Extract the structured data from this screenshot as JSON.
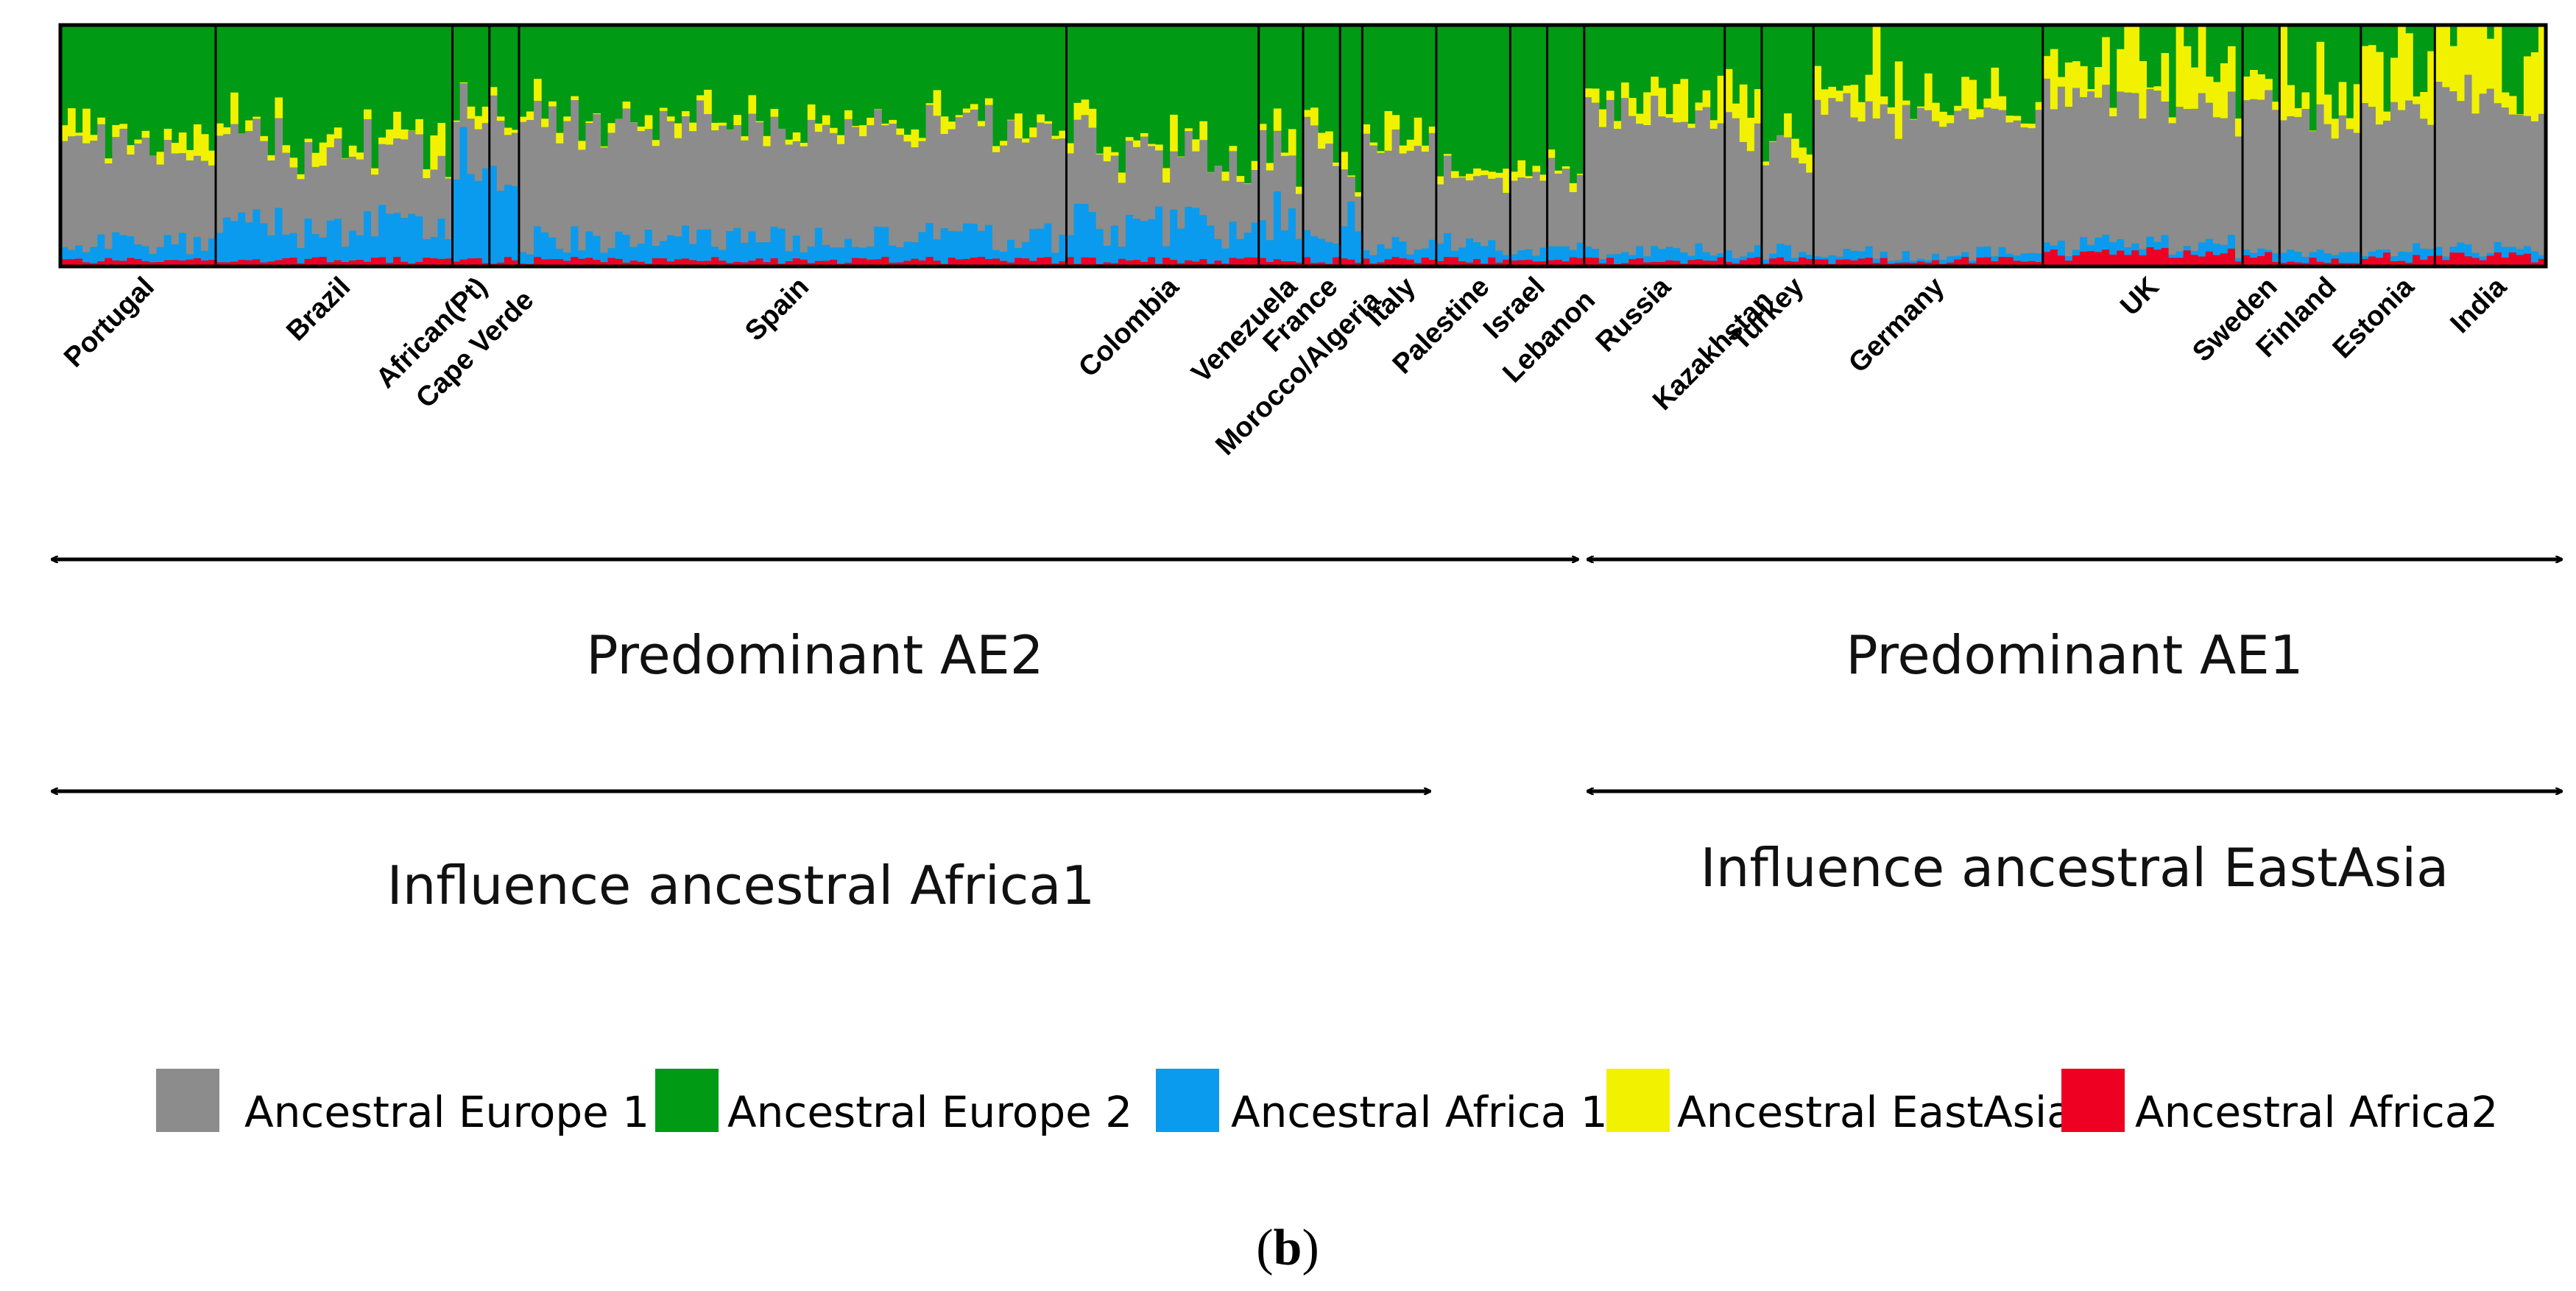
{
  "chart_data": {
    "type": "stacked-bar",
    "title": "",
    "xlabel": "",
    "ylabel": "",
    "ylim": [
      0,
      1
    ],
    "grid": false,
    "legend_position": "bottom",
    "components": [
      {
        "key": "ae1",
        "name": "Ancestral Europe 1",
        "color": "#8c8c8c"
      },
      {
        "key": "ae2",
        "name": "Ancestral Europe 2",
        "color": "#009a14"
      },
      {
        "key": "af1",
        "name": "Ancestral Africa 1",
        "color": "#0a9bee"
      },
      {
        "key": "ea",
        "name": "Ancestral EastAsia",
        "color": "#f2f200"
      },
      {
        "key": "af2",
        "name": "Ancestral Africa2",
        "color": "#ee0022"
      }
    ],
    "populations": [
      {
        "name": "Portugal",
        "n": 21,
        "af2": 0.02,
        "af1": 0.07,
        "ae1": 0.39,
        "ea": 0.03,
        "label_row": 0
      },
      {
        "name": "Brazil",
        "n": 32,
        "af2": 0.02,
        "af1": 0.13,
        "ae1": 0.33,
        "ea": 0.03,
        "label_row": 0
      },
      {
        "name": "African(Pt)",
        "n": 5,
        "af2": 0.02,
        "af1": 0.35,
        "ae1": 0.21,
        "ea": 0.04,
        "label_row": 0
      },
      {
        "name": "Cape Verde",
        "n": 4,
        "af2": 0.02,
        "af1": 0.24,
        "ae1": 0.22,
        "ea": 0.02,
        "label_row": 1
      },
      {
        "name": "Spain",
        "n": 74,
        "af2": 0.02,
        "af1": 0.09,
        "ae1": 0.46,
        "ea": 0.02,
        "label_row": 0
      },
      {
        "name": "Colombia",
        "n": 26,
        "af2": 0.02,
        "af1": 0.15,
        "ae1": 0.29,
        "ea": 0.04,
        "label_row": 0
      },
      {
        "name": "Venezuela",
        "n": 6,
        "af2": 0.02,
        "af1": 0.18,
        "ae1": 0.28,
        "ea": 0.03,
        "label_row": 0
      },
      {
        "name": "France",
        "n": 5,
        "af2": 0.02,
        "af1": 0.08,
        "ae1": 0.38,
        "ea": 0.04,
        "label_row": 0
      },
      {
        "name": "Morocco/Algeria",
        "n": 3,
        "af2": 0.02,
        "af1": 0.28,
        "ae1": 0.17,
        "ea": 0.02,
        "label_row": 1
      },
      {
        "name": "Italy",
        "n": 10,
        "af2": 0.02,
        "af1": 0.05,
        "ae1": 0.43,
        "ea": 0.03,
        "label_row": 0
      },
      {
        "name": "Palestine",
        "n": 10,
        "af2": 0.02,
        "af1": 0.06,
        "ae1": 0.28,
        "ea": 0.02,
        "label_row": 0
      },
      {
        "name": "Israel",
        "n": 5,
        "af2": 0.02,
        "af1": 0.04,
        "ae1": 0.3,
        "ea": 0.02,
        "label_row": 0
      },
      {
        "name": "Lebanon",
        "n": 5,
        "af2": 0.02,
        "af1": 0.04,
        "ae1": 0.32,
        "ea": 0.02,
        "label_row": 1
      },
      {
        "name": "Russia",
        "n": 19,
        "af2": 0.02,
        "af1": 0.04,
        "ae1": 0.56,
        "ea": 0.04,
        "label_row": 0
      },
      {
        "name": "Kazakhstan",
        "n": 5,
        "af2": 0.02,
        "af1": 0.03,
        "ae1": 0.5,
        "ea": 0.12,
        "label_row": 1
      },
      {
        "name": "Turkey",
        "n": 7,
        "af2": 0.02,
        "af1": 0.04,
        "ae1": 0.42,
        "ea": 0.06,
        "label_row": 0
      },
      {
        "name": "Germany",
        "n": 31,
        "af2": 0.02,
        "af1": 0.03,
        "ae1": 0.56,
        "ea": 0.08,
        "label_row": 0
      },
      {
        "name": "UK",
        "n": 27,
        "af2": 0.04,
        "af1": 0.04,
        "ae1": 0.58,
        "ea": 0.12,
        "label_row": 0
      },
      {
        "name": "Sweden",
        "n": 5,
        "af2": 0.03,
        "af1": 0.03,
        "ae1": 0.64,
        "ea": 0.06,
        "label_row": 0
      },
      {
        "name": "Finland",
        "n": 11,
        "af2": 0.02,
        "af1": 0.03,
        "ae1": 0.55,
        "ea": 0.15,
        "label_row": 0
      },
      {
        "name": "Estonia",
        "n": 10,
        "af2": 0.03,
        "af1": 0.03,
        "ae1": 0.57,
        "ea": 0.12,
        "label_row": 0
      },
      {
        "name": "India",
        "n": 15,
        "af2": 0.03,
        "af1": 0.03,
        "ae1": 0.63,
        "ea": 0.26,
        "label_row": 0
      }
    ],
    "ranges": [
      {
        "label": "Predominant AE2",
        "from_pop": 0,
        "to_pop": 12
      },
      {
        "label": "Predominant AE1",
        "from_pop": 13,
        "to_pop": 21
      },
      {
        "label": "Influence ancestral Africa1",
        "from_pop": 0,
        "to_pop": 9
      },
      {
        "label": "Influence ancestral EastAsia",
        "from_pop": 13,
        "to_pop": 21
      }
    ]
  },
  "legend": {
    "items": [
      {
        "label": "Ancestral Europe 1",
        "color": "#8c8c8c"
      },
      {
        "label": "Ancestral Europe 2",
        "color": "#009a14"
      },
      {
        "label": "Ancestral Africa 1",
        "color": "#0a9bee"
      },
      {
        "label": "Ancestral EastAsia",
        "color": "#f2f200"
      },
      {
        "label": "Ancestral Africa2",
        "color": "#ee0022"
      }
    ]
  },
  "caption": {
    "open": "(",
    "letter": "b",
    "close": ")"
  }
}
